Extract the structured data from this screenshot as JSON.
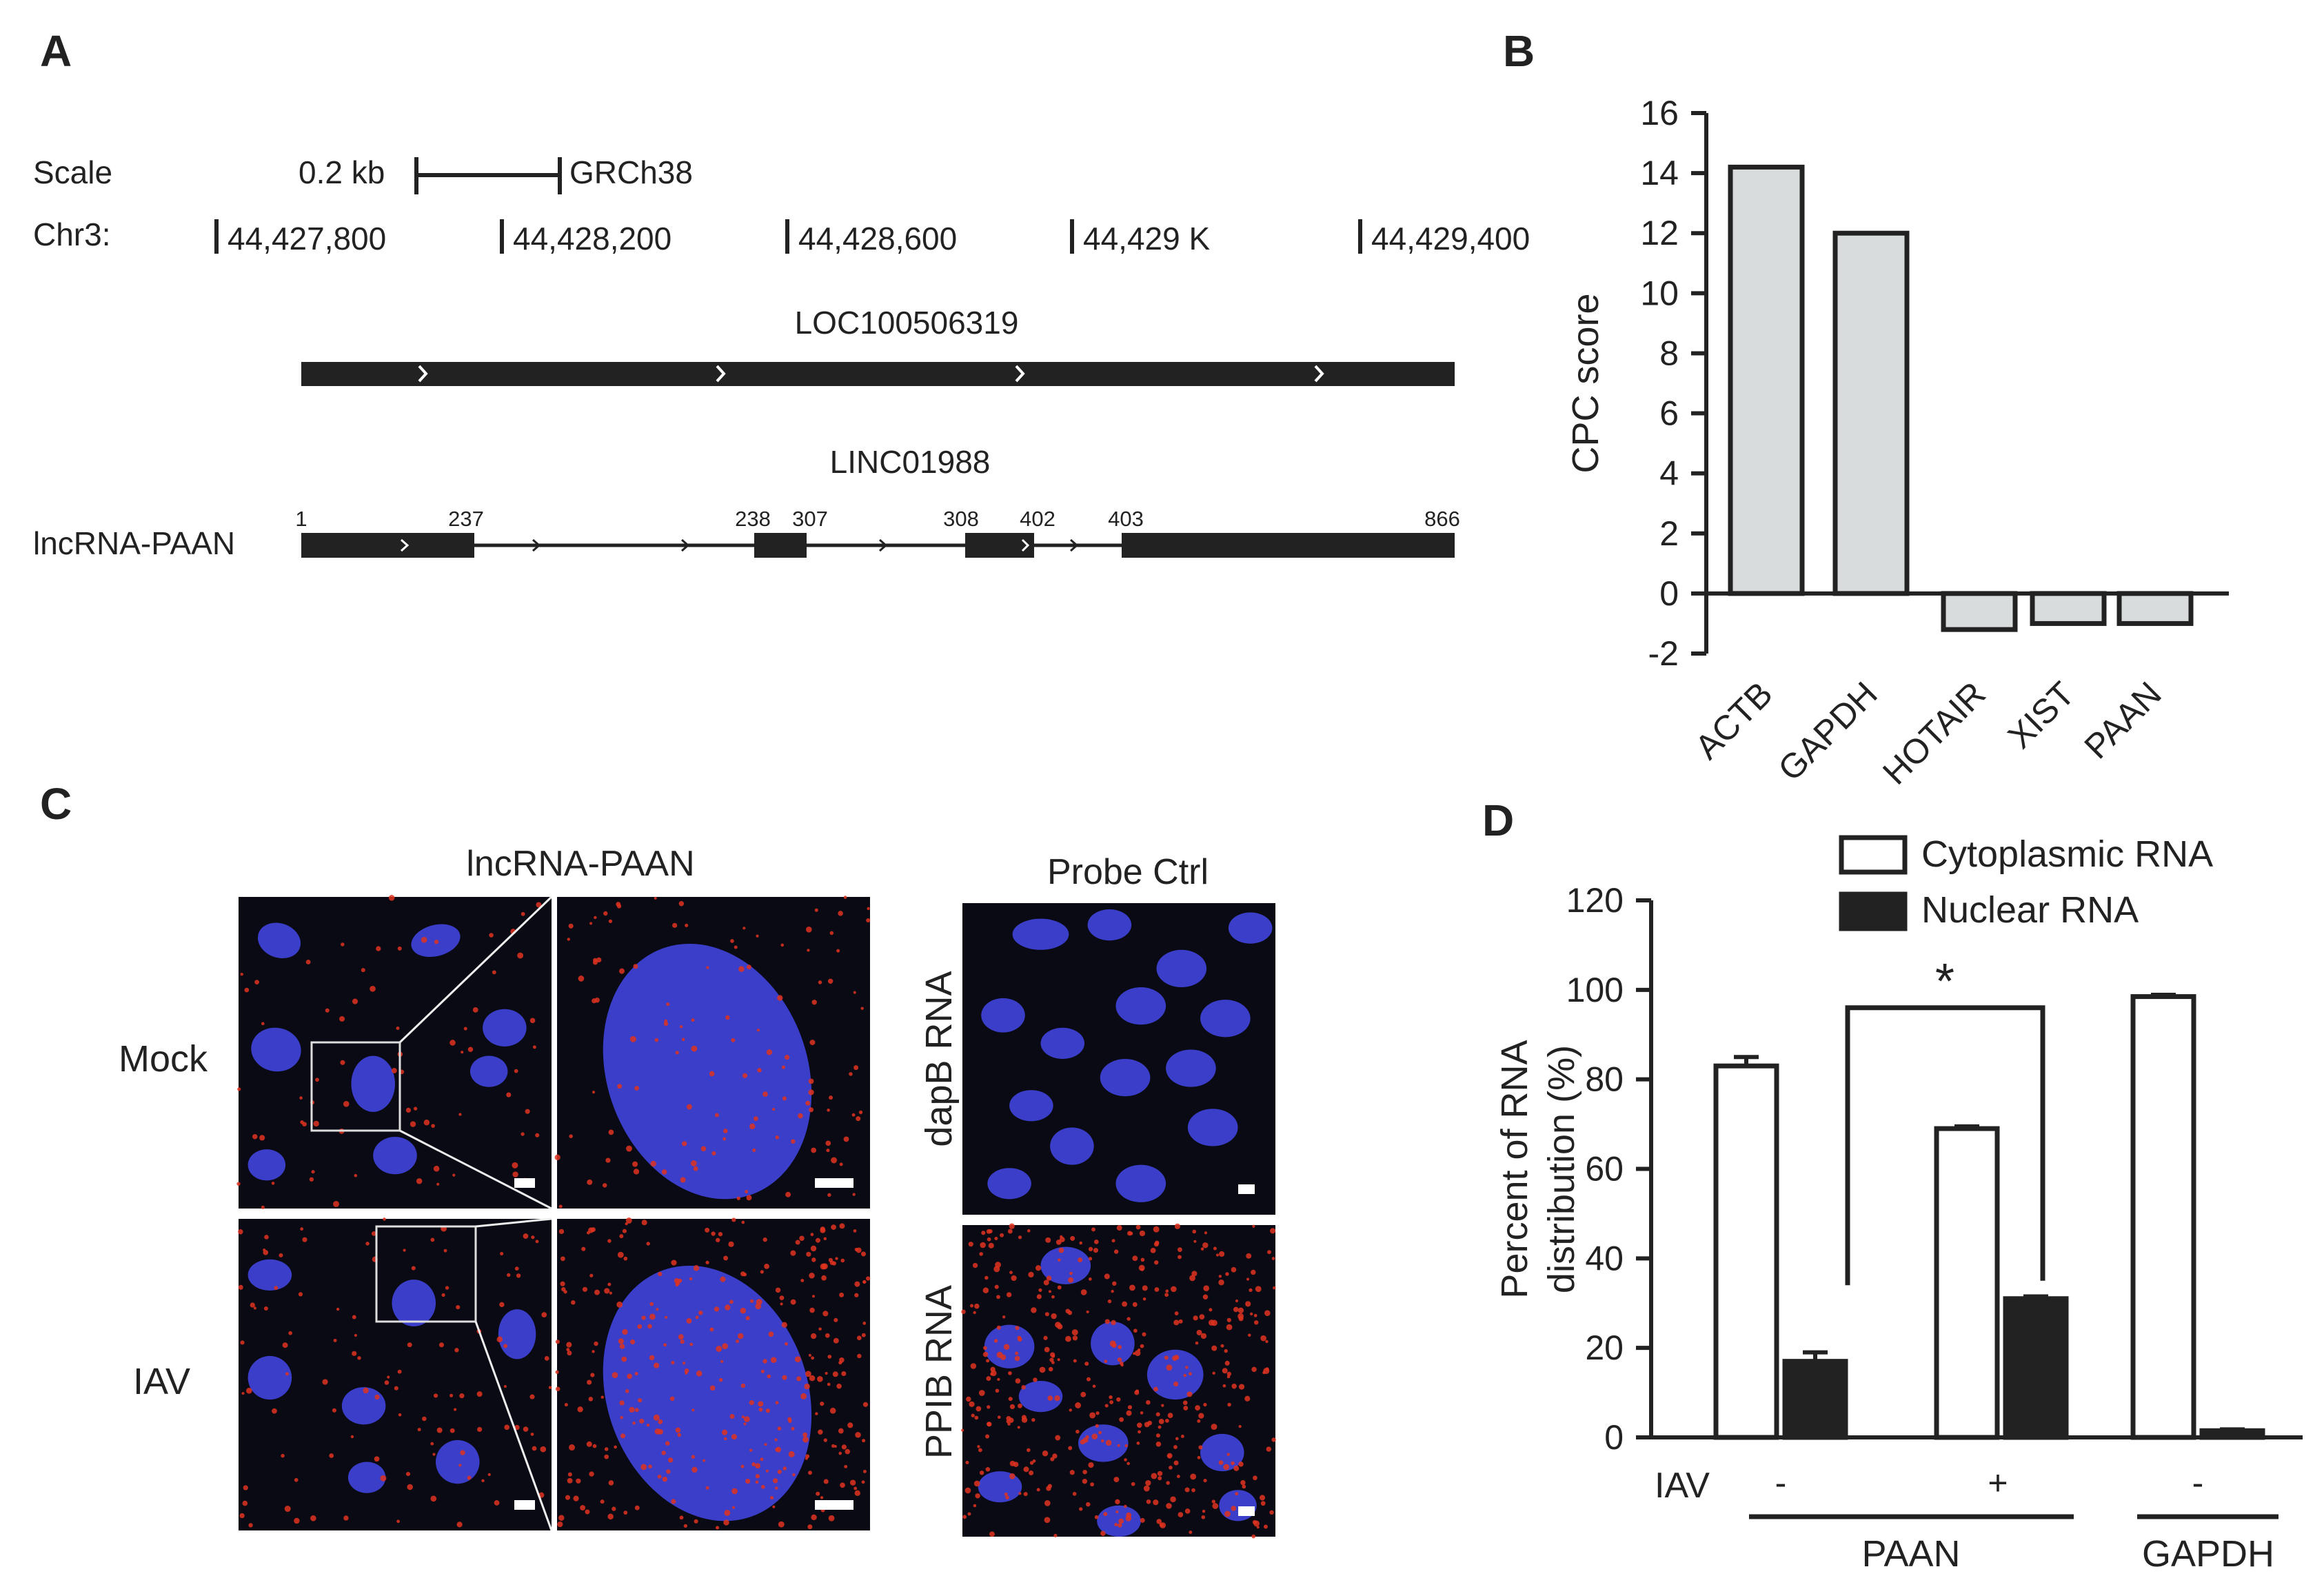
{
  "panel_letters": [
    "A",
    "B",
    "C",
    "D"
  ],
  "colors": {
    "ink": "#222222",
    "bar_gray": "#d9dcdc",
    "bar_black": "#222222",
    "microscopy_bg": "#0a0a14",
    "nucleus_blue": "#3a3ec8",
    "rna_dot_red": "#e0321e"
  },
  "panel_a": {
    "scale_label": "Scale",
    "scale_value": "0.2 kb",
    "genome": "GRCh38",
    "chr_label": "Chr3:",
    "coords": [
      "44,427,800",
      "44,428,200",
      "44,428,600",
      "44,429 K",
      "44,429,400"
    ],
    "gene1_name": "LOC100506319",
    "gene2_name": "LINC01988",
    "track_label": "lncRNA-PAAN",
    "exon_positions": [
      "1",
      "237",
      "238",
      "307",
      "308",
      "402",
      "403",
      "866"
    ]
  },
  "panel_c": {
    "title_left": "lncRNA-PAAN",
    "title_right": "Probe Ctrl",
    "row_labels": [
      "Mock",
      "IAV"
    ],
    "probe_labels": [
      "dapB RNA",
      "PPIB RNA"
    ],
    "microscopy_icon": "fluorescence-microscopy-image"
  },
  "chart_data": [
    {
      "type": "bar",
      "panel": "B",
      "categories": [
        "ACTB",
        "GAPDH",
        "HOTAIR",
        "XIST",
        "PAAN"
      ],
      "values": [
        14.2,
        12.0,
        -1.2,
        -1.0,
        -1.0
      ],
      "ylabel": "CPC score",
      "ylim": [
        -2,
        16
      ],
      "yticks": [
        "16",
        "14",
        "12",
        "10",
        "8",
        "6",
        "4",
        "2",
        "0",
        "-2"
      ],
      "grid": false
    },
    {
      "type": "bar",
      "panel": "D",
      "groups": [
        {
          "iav": "-",
          "gene": "PAAN",
          "cytoplasmic": 83,
          "nuclear": 17,
          "cyto_err": 2,
          "nuc_err": 2
        },
        {
          "iav": "+",
          "gene": "PAAN",
          "cytoplasmic": 69,
          "nuclear": 31,
          "cyto_err": 0.5,
          "nuc_err": 0.5
        },
        {
          "iav": "-",
          "gene": "GAPDH",
          "cytoplasmic": 98.5,
          "nuclear": 1.5,
          "cyto_err": 0.4,
          "nuc_err": 0.3
        }
      ],
      "series": [
        {
          "name": "Cytoplasmic RNA",
          "color": "#ffffff"
        },
        {
          "name": "Nuclear RNA",
          "color": "#222222"
        }
      ],
      "ylabel_line1": "Percent of RNA",
      "ylabel_line2": "distribution (%)",
      "ylim": [
        0,
        120
      ],
      "yticks": [
        "120",
        "100",
        "80",
        "60",
        "40",
        "20",
        "0"
      ],
      "x_row_label": "IAV",
      "gene_labels": [
        "PAAN",
        "GAPDH"
      ],
      "significance": "*",
      "legend_placement": "top-right"
    }
  ]
}
